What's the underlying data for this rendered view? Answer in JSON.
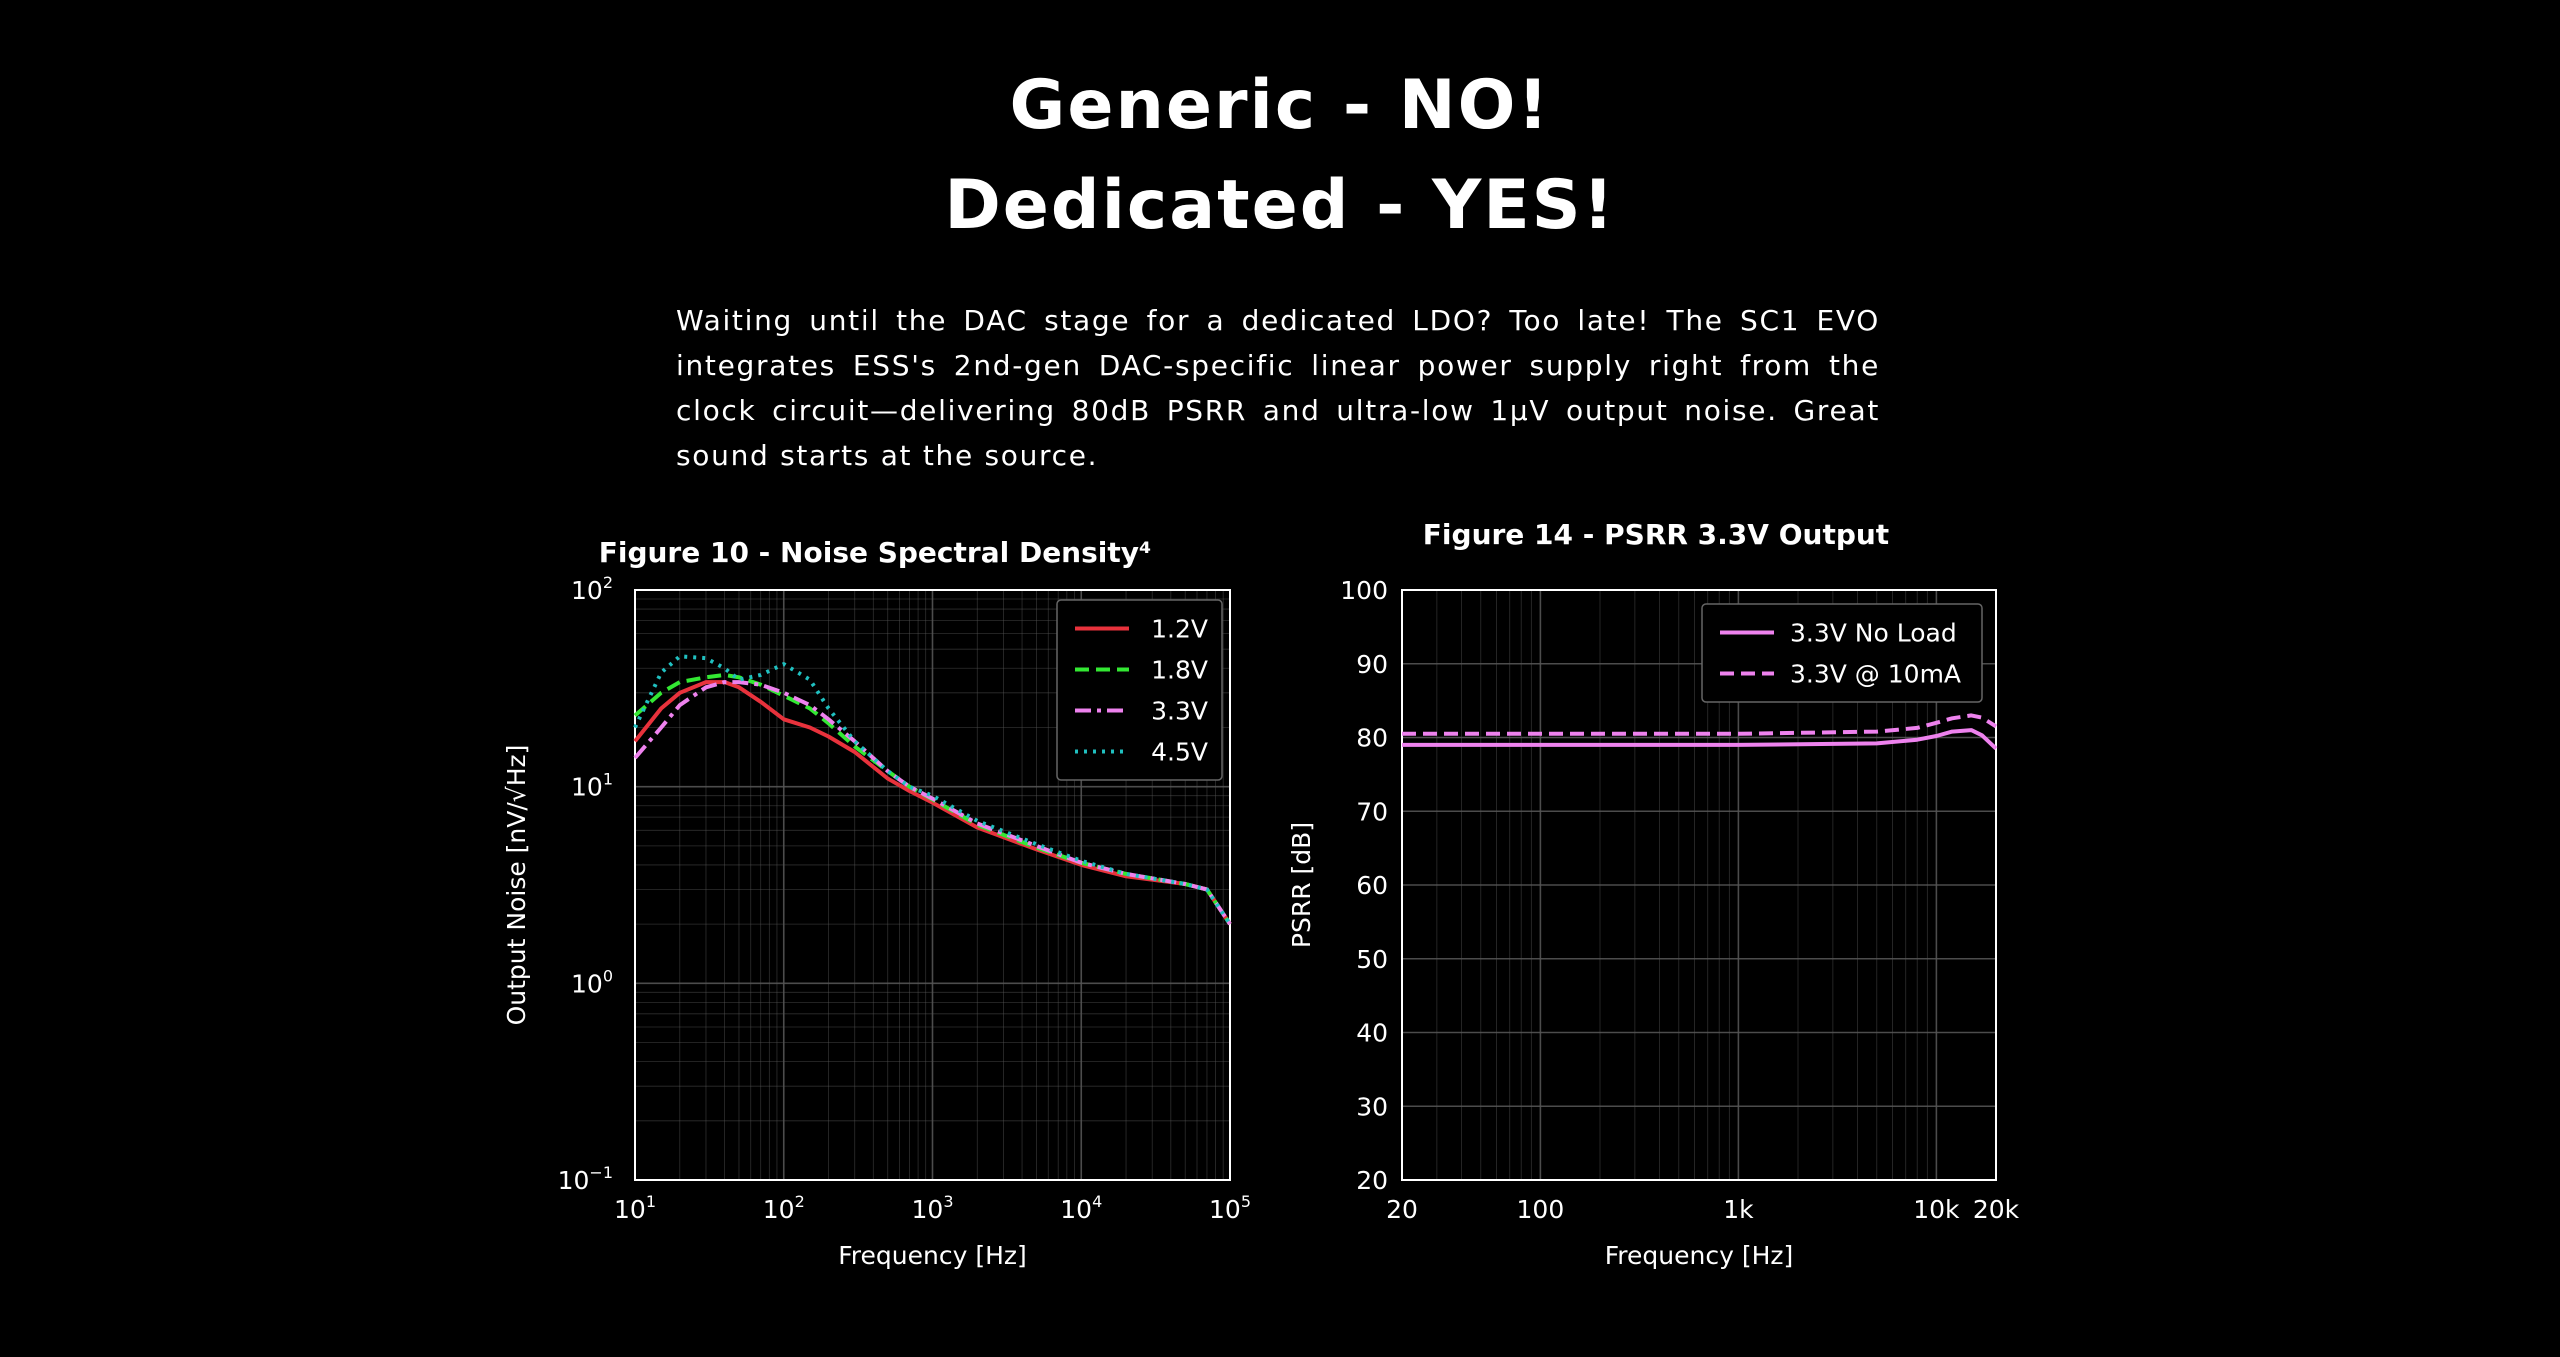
{
  "page": {
    "heading_line1": "Generic - NO!",
    "heading_line2": "Dedicated - YES!",
    "body": "Waiting until the DAC stage for a dedicated LDO? Too late! The SC1 EVO integrates ESS's 2nd-gen DAC-specific linear power supply right from the clock circuit—delivering 80dB PSRR and ultra-low 1μV output noise. Great sound starts at the source."
  },
  "colors": {
    "background": "#000000",
    "text": "#ffffff",
    "grid": "#555555"
  },
  "chart_data": [
    {
      "type": "line",
      "title": "Figure 10 - Noise Spectral Density⁴",
      "xlabel": "Frequency [Hz]",
      "ylabel": "Output Noise [nV/√Hz]",
      "xscale": "log",
      "yscale": "log",
      "xlim": [
        10,
        100000
      ],
      "ylim": [
        0.1,
        100
      ],
      "xtick_labels": [
        {
          "value": 10,
          "base": "10",
          "exp": "1"
        },
        {
          "value": 100,
          "base": "10",
          "exp": "2"
        },
        {
          "value": 1000,
          "base": "10",
          "exp": "3"
        },
        {
          "value": 10000,
          "base": "10",
          "exp": "4"
        },
        {
          "value": 100000,
          "base": "10",
          "exp": "5"
        }
      ],
      "ytick_labels": [
        {
          "value": 0.1,
          "base": "10",
          "exp": "−1"
        },
        {
          "value": 1,
          "base": "10",
          "exp": "0"
        },
        {
          "value": 10,
          "base": "10",
          "exp": "1"
        },
        {
          "value": 100,
          "base": "10",
          "exp": "2"
        }
      ],
      "grid": true,
      "legend_position": "top-right",
      "series": [
        {
          "name": "1.2V",
          "color": "#e8323c",
          "dash": "solid",
          "x": [
            10,
            15,
            20,
            30,
            40,
            50,
            70,
            100,
            150,
            200,
            300,
            500,
            700,
            1000,
            2000,
            5000,
            10000,
            20000,
            50000,
            70000,
            100000
          ],
          "y": [
            17,
            25,
            30,
            34,
            34,
            32,
            27,
            22,
            20,
            18,
            15,
            11,
            9.5,
            8.3,
            6.2,
            4.8,
            4.0,
            3.5,
            3.2,
            3.0,
            2.0
          ]
        },
        {
          "name": "1.8V",
          "color": "#33e833",
          "dash": "dashed",
          "x": [
            10,
            15,
            20,
            30,
            40,
            50,
            70,
            100,
            150,
            200,
            300,
            500,
            700,
            1000,
            2000,
            5000,
            10000,
            20000,
            50000,
            70000,
            100000
          ],
          "y": [
            23,
            30,
            34,
            36,
            37,
            36,
            33,
            29,
            25,
            21,
            16,
            12,
            10,
            8.6,
            6.4,
            4.9,
            4.1,
            3.6,
            3.2,
            3.0,
            2.0
          ]
        },
        {
          "name": "3.3V",
          "color": "#ee82ee",
          "dash": "dashdot",
          "x": [
            10,
            15,
            20,
            30,
            40,
            50,
            70,
            100,
            150,
            200,
            300,
            500,
            700,
            1000,
            2000,
            5000,
            10000,
            20000,
            50000,
            70000,
            100000
          ],
          "y": [
            14,
            20,
            26,
            32,
            34,
            34,
            33,
            30,
            26,
            22,
            17,
            12,
            10,
            8.7,
            6.5,
            5.0,
            4.1,
            3.6,
            3.2,
            3.0,
            2.0
          ]
        },
        {
          "name": "4.5V",
          "color": "#20c0c0",
          "dash": "dotted",
          "x": [
            10,
            15,
            20,
            30,
            40,
            50,
            70,
            100,
            150,
            200,
            300,
            500,
            700,
            1000,
            2000,
            5000,
            10000,
            20000,
            50000,
            70000,
            100000
          ],
          "y": [
            20,
            38,
            46,
            45,
            40,
            35,
            37,
            42,
            35,
            25,
            17,
            12,
            10,
            9.0,
            6.7,
            5.1,
            4.2,
            3.6,
            3.2,
            3.0,
            2.0
          ]
        }
      ]
    },
    {
      "type": "line",
      "title": "Figure 14 - PSRR 3.3V Output",
      "xlabel": "Frequency [Hz]",
      "ylabel": "PSRR [dB]",
      "xscale": "log",
      "xlim": [
        20,
        20000
      ],
      "ylim": [
        20,
        100
      ],
      "xtick_labels": [
        {
          "value": 20,
          "label": "20"
        },
        {
          "value": 100,
          "label": "100"
        },
        {
          "value": 1000,
          "label": "1k"
        },
        {
          "value": 10000,
          "label": "10k"
        },
        {
          "value": 20000,
          "label": "20k"
        }
      ],
      "yticks": [
        20,
        30,
        40,
        50,
        60,
        70,
        80,
        90,
        100
      ],
      "grid": true,
      "legend_position": "top-right",
      "series": [
        {
          "name": "3.3V No Load",
          "color": "#ee82ee",
          "dash": "solid",
          "x": [
            20,
            100,
            1000,
            5000,
            8000,
            10000,
            12000,
            15000,
            17000,
            20000
          ],
          "y": [
            79,
            79,
            79,
            79.2,
            79.7,
            80.2,
            80.8,
            81,
            80.3,
            78.5
          ]
        },
        {
          "name": "3.3V @ 10mA",
          "color": "#ee82ee",
          "dash": "dashed",
          "x": [
            20,
            100,
            1000,
            5000,
            8000,
            10000,
            12000,
            15000,
            17000,
            20000
          ],
          "y": [
            80.5,
            80.5,
            80.5,
            80.8,
            81.3,
            82,
            82.6,
            83,
            82.7,
            81.5
          ]
        }
      ]
    }
  ]
}
